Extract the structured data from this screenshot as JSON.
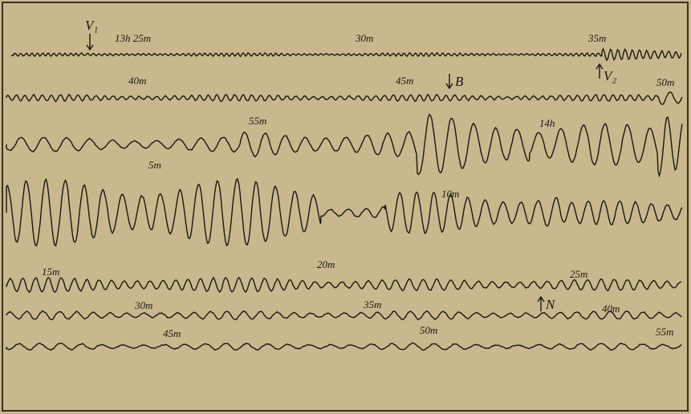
{
  "labels": [
    "V₁",
    "13h 25m",
    "30m",
    "35m",
    "V₂",
    "40m",
    "45m",
    "B",
    "50m",
    "55m",
    "14h",
    "5m",
    "10m",
    "15m",
    "20m",
    "25m",
    "30m",
    "35m",
    "N",
    "40m",
    "45m",
    "50m",
    "55m"
  ]
}
